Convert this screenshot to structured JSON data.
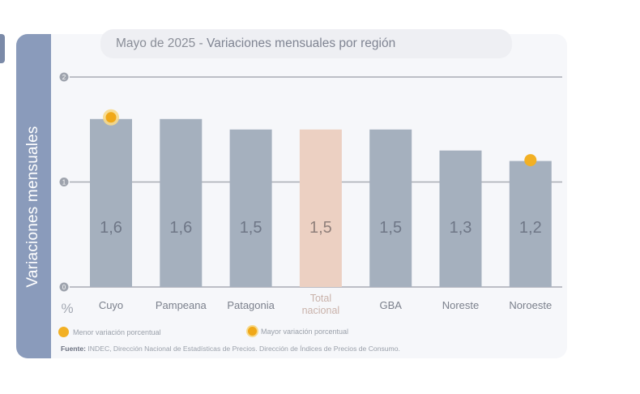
{
  "chart_data": {
    "type": "bar",
    "title_prefix": "Mayo de 2025 - ",
    "title_rest": "Variaciones mensuales por región",
    "ylabel": "Variaciones  mensuales",
    "yunit": "%",
    "ylim": [
      0,
      2
    ],
    "yticks": [
      "0",
      "1",
      "2"
    ],
    "categories": [
      "Cuyo",
      "Pampeana",
      "Patagonia",
      "Total nacional",
      "GBA",
      "Noreste",
      "Noroeste"
    ],
    "values": [
      1.6,
      1.6,
      1.5,
      1.5,
      1.5,
      1.3,
      1.2
    ],
    "value_labels": [
      "1,6",
      "1,6",
      "1,5",
      "1,5",
      "1,5",
      "1,3",
      "1,2"
    ],
    "highlight": {
      "max_index": 0,
      "min_index": 6
    },
    "grid": true,
    "colors": {
      "bar": "#a5b0be",
      "total_bar": "#ecd0c2",
      "total_label": "#c9b2aa",
      "marker": "#f2b024",
      "axis": "#9ea3ad"
    },
    "legend": [
      {
        "label": "Menor variación porcentual",
        "kind": "min"
      },
      {
        "label": "Mayor variación porcentual",
        "kind": "max"
      }
    ],
    "legend_placement": "bottom-left",
    "source_label": "Fuente:",
    "source_text": " INDEC, Dirección Nacional de Estadísticas de Precios. Dirección de Índices de Precios de Consumo."
  }
}
